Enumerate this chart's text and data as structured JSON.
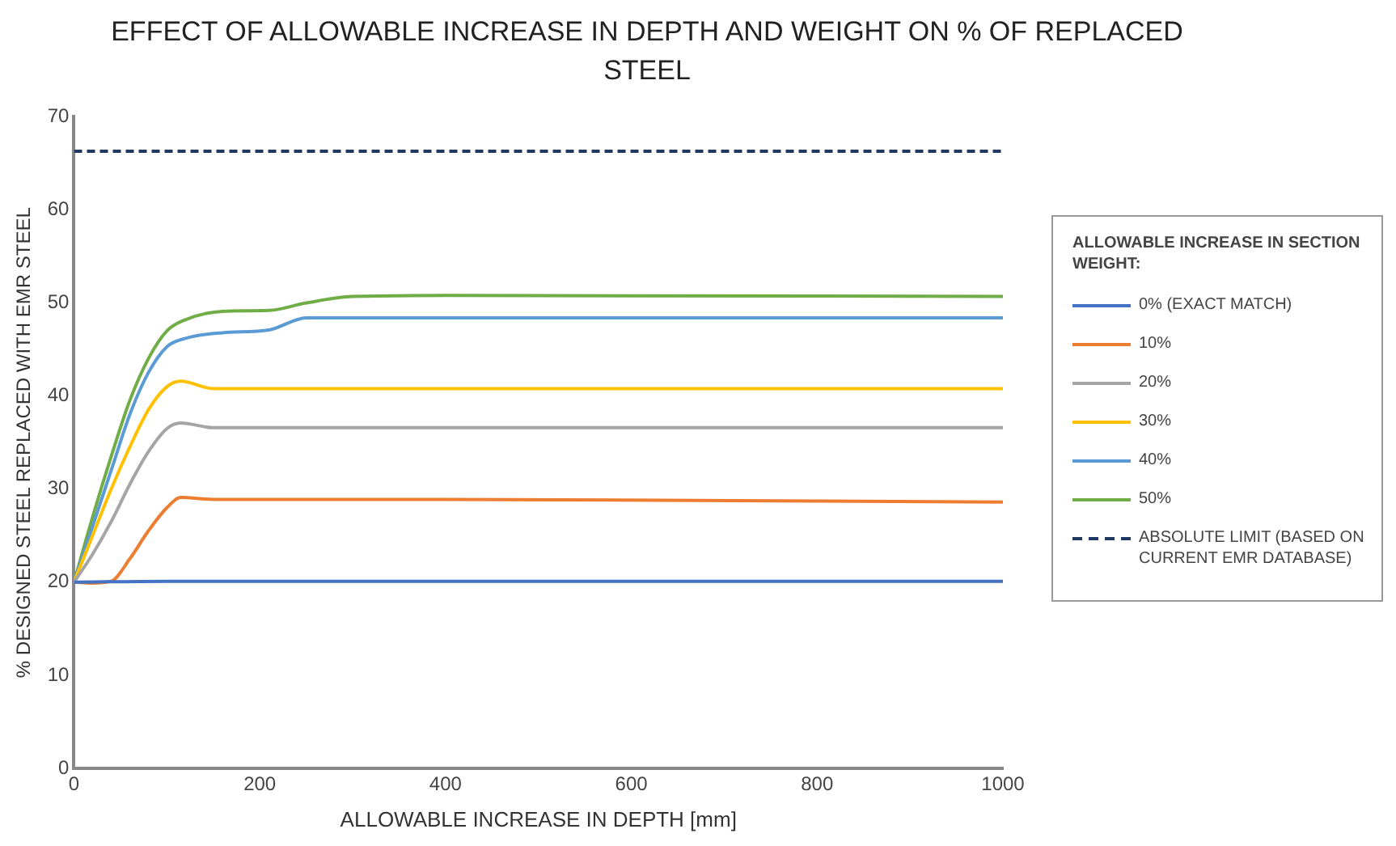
{
  "chart_data": {
    "type": "line",
    "title": "EFFECT OF ALLOWABLE INCREASE IN DEPTH AND WEIGHT ON % OF REPLACED STEEL",
    "xlabel": "ALLOWABLE INCREASE IN DEPTH [mm]",
    "ylabel": "% DESIGNED STEEL REPLACED WITH EMR STEEL",
    "legend_title": "ALLOWABLE INCREASE IN SECTION WEIGHT:",
    "legend": "right",
    "grid": false,
    "marker": "none",
    "xlim": [
      0,
      1000
    ],
    "xticks": [
      0,
      200,
      400,
      600,
      800,
      1000
    ],
    "ylim": [
      0,
      70
    ],
    "yticks": [
      0,
      10,
      20,
      30,
      40,
      50,
      60,
      70
    ],
    "series": [
      {
        "name": "0% (EXACT MATCH)",
        "color": "#4472c4",
        "x": [
          0,
          100,
          200,
          1000
        ],
        "values": [
          20,
          20.1,
          20.1,
          20.1
        ]
      },
      {
        "name": "10%",
        "color": "#ed7d31",
        "x": [
          0,
          20,
          40,
          60,
          80,
          100,
          115,
          150,
          400,
          1000
        ],
        "values": [
          20,
          19.9,
          20.1,
          22.5,
          25.5,
          28,
          29.1,
          28.9,
          28.9,
          28.6
        ]
      },
      {
        "name": "20%",
        "color": "#a5a5a5",
        "x": [
          0,
          20,
          40,
          60,
          80,
          100,
          115,
          150,
          1000
        ],
        "values": [
          20,
          23,
          26.5,
          30.5,
          34,
          36.5,
          37.1,
          36.6,
          36.6
        ]
      },
      {
        "name": "30%",
        "color": "#ffc000",
        "x": [
          0,
          20,
          40,
          60,
          80,
          100,
          115,
          150,
          1000
        ],
        "values": [
          20,
          25,
          30,
          34.5,
          38.5,
          41,
          41.6,
          40.8,
          40.8
        ]
      },
      {
        "name": "40%",
        "color": "#5b9bd5",
        "x": [
          0,
          20,
          40,
          60,
          80,
          100,
          120,
          160,
          210,
          250,
          1000
        ],
        "values": [
          20,
          26,
          32,
          38,
          42.5,
          45.3,
          46.2,
          46.8,
          47.1,
          48.4,
          48.4
        ]
      },
      {
        "name": "50%",
        "color": "#70ad47",
        "x": [
          0,
          20,
          40,
          60,
          80,
          100,
          120,
          160,
          210,
          250,
          300,
          400,
          1000
        ],
        "values": [
          20,
          27,
          33.5,
          39.5,
          44,
          47,
          48.2,
          49.1,
          49.2,
          50,
          50.7,
          50.8,
          50.7
        ]
      },
      {
        "name": "ABSOLUTE LIMIT (BASED ON CURRENT EMR DATABASE)",
        "color": "#203864",
        "line_style": "dashed",
        "x": [
          0,
          1000
        ],
        "values": [
          66.3,
          66.3
        ]
      }
    ]
  }
}
